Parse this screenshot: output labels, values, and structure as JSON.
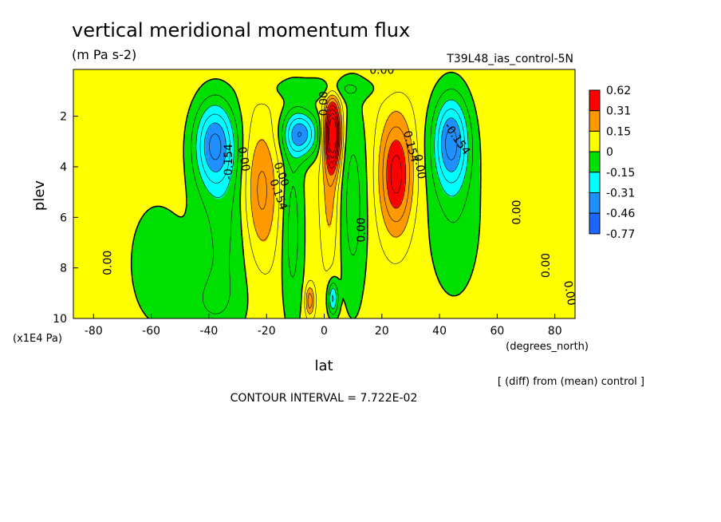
{
  "chart_data": {
    "type": "heatmap",
    "title": "vertical meridional momentum flux",
    "units": "(m Pa s-2)",
    "dataset": "T39L48_ias_control-5N",
    "xlabel": "lat",
    "x_units": "(degrees_north)",
    "ylabel": "plev",
    "y_units": "(x1E4 Pa)",
    "xlim": [
      -87,
      87
    ],
    "ylim": [
      10,
      0.15
    ],
    "x_ticks": [
      -80,
      -60,
      -40,
      -20,
      0,
      20,
      40,
      60,
      80
    ],
    "x_tick_labels": [
      "-80",
      "-60",
      "-40",
      "-20",
      "0",
      "20",
      "40",
      "60",
      "80"
    ],
    "y_ticks": [
      2,
      4,
      6,
      8,
      10
    ],
    "y_tick_labels": [
      "2",
      "4",
      "6",
      "8",
      "10"
    ],
    "footnote": "[ (diff) from (mean) control ]",
    "contour_interval": "CONTOUR INTERVAL = 7.722E-02",
    "legend": {
      "placement": "right",
      "labels": [
        "0.62",
        "0.31",
        "0.15",
        "0",
        "-0.15",
        "-0.31",
        "-0.46",
        "-0.77"
      ],
      "levels": [
        0.62,
        0.31,
        0.15,
        0,
        -0.15,
        -0.31,
        -0.46,
        -0.77
      ],
      "colors": [
        "#ff0000",
        "#ff9900",
        "#ffff00",
        "#00e000",
        "#00ffff",
        "#1e90ff",
        "#1e64ff"
      ]
    },
    "field_features": [
      {
        "kind": "positive",
        "lat": -22,
        "plev": 5.0,
        "peak": 0.2
      },
      {
        "kind": "positive",
        "lat": 3,
        "plev": 2.8,
        "peak": 0.62
      },
      {
        "kind": "positive",
        "lat": 25,
        "plev": 4.2,
        "peak": 0.35
      },
      {
        "kind": "negative",
        "lat": -38,
        "plev": 3.0,
        "peak": -0.33
      },
      {
        "kind": "negative",
        "lat": -8,
        "plev": 2.7,
        "peak": -0.3
      },
      {
        "kind": "negative",
        "lat": 44,
        "plev": 3.0,
        "peak": -0.33
      }
    ],
    "contour_labels": [
      {
        "text": "0.00",
        "lat": 20,
        "plev": 0.2,
        "angle": 0
      },
      {
        "text": "0.00",
        "lat": 0,
        "plev": 1.5,
        "angle": -90
      },
      {
        "text": "0.00",
        "lat": -28,
        "plev": 3.7,
        "angle": 80
      },
      {
        "text": "-0.154",
        "lat": -33,
        "plev": 3.8,
        "angle": -90
      },
      {
        "text": "0.00",
        "lat": -15,
        "plev": 4.3,
        "angle": 70
      },
      {
        "text": "0.154",
        "lat": -16,
        "plev": 5.1,
        "angle": 70
      },
      {
        "text": "0.154",
        "lat": 30,
        "plev": 3.2,
        "angle": 75
      },
      {
        "text": "0.00",
        "lat": 33,
        "plev": 4.0,
        "angle": 80
      },
      {
        "text": "-0.154",
        "lat": 46,
        "plev": 2.9,
        "angle": 55
      },
      {
        "text": "0.00",
        "lat": 13,
        "plev": 6.5,
        "angle": -90
      },
      {
        "text": "0.00",
        "lat": -75,
        "plev": 7.8,
        "angle": -90
      },
      {
        "text": "0.00",
        "lat": 67,
        "plev": 5.8,
        "angle": -90
      },
      {
        "text": "0.00",
        "lat": 77,
        "plev": 7.9,
        "angle": -90
      },
      {
        "text": "0.00",
        "lat": 85,
        "plev": 9.0,
        "angle": 80
      }
    ]
  }
}
